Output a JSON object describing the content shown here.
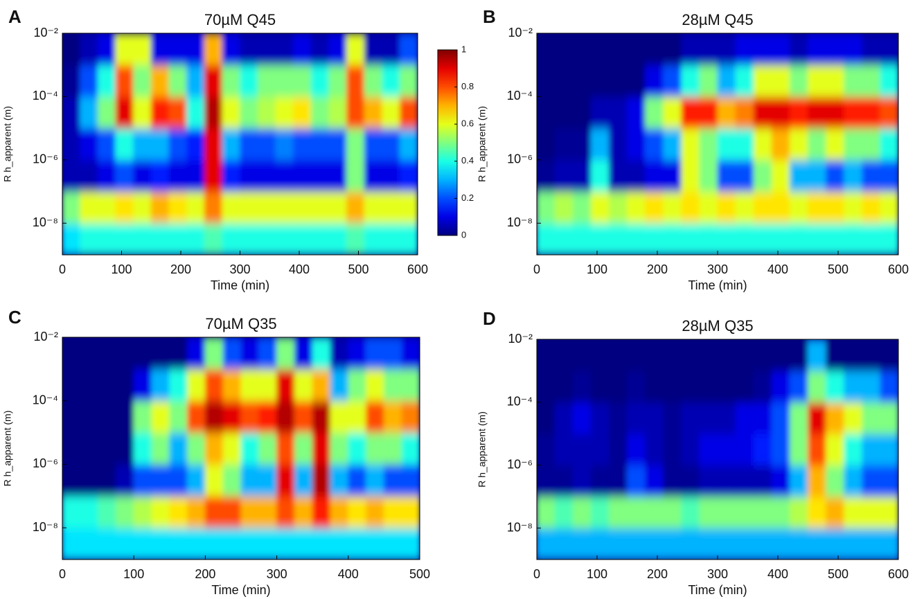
{
  "chart_data": [
    {
      "type": "heatmap",
      "panel_label": "A",
      "title": "70µM Q45",
      "x_label": "Time (min)",
      "y_label": "R h_apparent (m)",
      "colormap": "jet",
      "log_y": true,
      "xlim": [
        0,
        600
      ],
      "xticks": [
        0,
        100,
        200,
        300,
        400,
        500,
        600
      ],
      "ylim": [
        1e-09,
        0.01
      ],
      "yticks": [
        {
          "value": 1e-08,
          "label": "10⁻⁸"
        },
        {
          "value": 1e-06,
          "label": "10⁻⁶"
        },
        {
          "value": 0.0001,
          "label": "10⁻⁴"
        },
        {
          "value": 0.01,
          "label": "10⁻²"
        }
      ],
      "xbins": [
        0,
        30,
        60,
        90,
        120,
        150,
        180,
        210,
        240,
        270,
        300,
        330,
        360,
        390,
        420,
        450,
        480,
        510,
        540,
        570,
        600
      ],
      "ybins": [
        1e-09,
        1e-08,
        1e-07,
        1e-06,
        1e-05,
        0.0001,
        0.001,
        0.01
      ],
      "z": [
        [
          0.35,
          0.4,
          0.4,
          0.4,
          0.4,
          0.4,
          0.4,
          0.4,
          0.45,
          0.4,
          0.4,
          0.4,
          0.4,
          0.4,
          0.4,
          0.4,
          0.45,
          0.4,
          0.4,
          0.4
        ],
        [
          0.5,
          0.6,
          0.6,
          0.65,
          0.6,
          0.7,
          0.65,
          0.6,
          0.75,
          0.6,
          0.6,
          0.6,
          0.6,
          0.6,
          0.6,
          0.6,
          0.7,
          0.6,
          0.6,
          0.6
        ],
        [
          0.05,
          0.05,
          0.1,
          0.2,
          0.1,
          0.15,
          0.1,
          0.1,
          0.9,
          0.15,
          0.1,
          0.1,
          0.1,
          0.1,
          0.1,
          0.1,
          0.5,
          0.1,
          0.1,
          0.15
        ],
        [
          0.05,
          0.1,
          0.2,
          0.4,
          0.3,
          0.3,
          0.2,
          0.15,
          0.9,
          0.3,
          0.2,
          0.2,
          0.25,
          0.2,
          0.2,
          0.2,
          0.5,
          0.2,
          0.2,
          0.3
        ],
        [
          0.05,
          0.3,
          0.5,
          0.9,
          0.6,
          0.85,
          0.8,
          0.4,
          0.95,
          0.6,
          0.5,
          0.55,
          0.6,
          0.65,
          0.5,
          0.55,
          0.8,
          0.7,
          0.6,
          0.8
        ],
        [
          0.02,
          0.2,
          0.4,
          0.8,
          0.5,
          0.7,
          0.5,
          0.3,
          0.9,
          0.5,
          0.4,
          0.5,
          0.5,
          0.5,
          0.4,
          0.5,
          0.8,
          0.5,
          0.4,
          0.5
        ],
        [
          0,
          0.05,
          0.1,
          0.6,
          0.6,
          0.1,
          0.1,
          0.1,
          0.7,
          0.1,
          0.05,
          0.05,
          0.05,
          0.1,
          0.05,
          0.1,
          0.6,
          0.05,
          0.05,
          0.2
        ]
      ],
      "colorbar": {
        "lim": [
          0,
          1
        ],
        "ticks": [
          0,
          0.2,
          0.4,
          0.6,
          0.8,
          1
        ]
      }
    },
    {
      "type": "heatmap",
      "panel_label": "B",
      "title": "28µM Q45",
      "x_label": "Time (min)",
      "y_label": "R h_apparent (m)",
      "colormap": "jet",
      "log_y": true,
      "xlim": [
        0,
        600
      ],
      "xticks": [
        0,
        100,
        200,
        300,
        400,
        500,
        600
      ],
      "ylim": [
        1e-09,
        0.01
      ],
      "yticks": [
        {
          "value": 1e-08,
          "label": "10⁻⁸"
        },
        {
          "value": 1e-06,
          "label": "10⁻⁶"
        },
        {
          "value": 0.0001,
          "label": "10⁻⁴"
        },
        {
          "value": 0.01,
          "label": "10⁻²"
        }
      ],
      "xbins": [
        0,
        30,
        60,
        90,
        120,
        150,
        180,
        210,
        240,
        270,
        300,
        330,
        360,
        390,
        420,
        450,
        480,
        510,
        540,
        570,
        600
      ],
      "ybins": [
        1e-09,
        1e-08,
        1e-07,
        1e-06,
        1e-05,
        0.0001,
        0.001,
        0.01
      ],
      "z": [
        [
          0.4,
          0.4,
          0.4,
          0.4,
          0.4,
          0.4,
          0.4,
          0.4,
          0.4,
          0.4,
          0.4,
          0.4,
          0.4,
          0.4,
          0.4,
          0.4,
          0.4,
          0.4,
          0.4,
          0.4
        ],
        [
          0.5,
          0.55,
          0.5,
          0.6,
          0.55,
          0.6,
          0.65,
          0.6,
          0.65,
          0.6,
          0.65,
          0.6,
          0.65,
          0.65,
          0.6,
          0.65,
          0.65,
          0.6,
          0.65,
          0.6
        ],
        [
          0.02,
          0.05,
          0.05,
          0.4,
          0.05,
          0.05,
          0.1,
          0.1,
          0.6,
          0.5,
          0.2,
          0.2,
          0.5,
          0.6,
          0.3,
          0.3,
          0.2,
          0.3,
          0.2,
          0.2
        ],
        [
          0,
          0.02,
          0.02,
          0.3,
          0.05,
          0.1,
          0.2,
          0.3,
          0.6,
          0.5,
          0.4,
          0.4,
          0.6,
          0.7,
          0.6,
          0.5,
          0.6,
          0.5,
          0.5,
          0.4
        ],
        [
          0,
          0,
          0,
          0.05,
          0.05,
          0.1,
          0.5,
          0.6,
          0.85,
          0.85,
          0.7,
          0.75,
          0.9,
          0.9,
          0.85,
          0.9,
          0.9,
          0.85,
          0.85,
          0.8
        ],
        [
          0,
          0,
          0,
          0,
          0,
          0,
          0.1,
          0.2,
          0.4,
          0.5,
          0.3,
          0.4,
          0.6,
          0.6,
          0.5,
          0.6,
          0.6,
          0.5,
          0.5,
          0.4
        ],
        [
          0,
          0,
          0,
          0,
          0,
          0,
          0,
          0,
          0.05,
          0.05,
          0.05,
          0.1,
          0.1,
          0.1,
          0.05,
          0.1,
          0.1,
          0.1,
          0.05,
          0.05
        ]
      ]
    },
    {
      "type": "heatmap",
      "panel_label": "C",
      "title": "70µM Q35",
      "x_label": "Time (min)",
      "y_label": "R h_apparent (m)",
      "colormap": "jet",
      "log_y": true,
      "xlim": [
        0,
        500
      ],
      "xticks": [
        0,
        100,
        200,
        300,
        400,
        500
      ],
      "ylim": [
        1e-09,
        0.01
      ],
      "yticks": [
        {
          "value": 1e-08,
          "label": "10⁻⁸"
        },
        {
          "value": 1e-06,
          "label": "10⁻⁶"
        },
        {
          "value": 0.0001,
          "label": "10⁻⁴"
        },
        {
          "value": 0.01,
          "label": "10⁻²"
        }
      ],
      "xbins": [
        0,
        25,
        50,
        75,
        100,
        125,
        150,
        175,
        200,
        225,
        250,
        275,
        300,
        325,
        350,
        375,
        400,
        425,
        450,
        475,
        500
      ],
      "ybins": [
        1e-09,
        1e-08,
        1e-07,
        1e-06,
        1e-05,
        0.0001,
        0.001,
        0.01
      ],
      "z": [
        [
          0.35,
          0.35,
          0.35,
          0.35,
          0.35,
          0.35,
          0.35,
          0.35,
          0.35,
          0.35,
          0.35,
          0.35,
          0.35,
          0.35,
          0.35,
          0.35,
          0.35,
          0.35,
          0.35,
          0.35
        ],
        [
          0.4,
          0.4,
          0.45,
          0.5,
          0.55,
          0.6,
          0.65,
          0.7,
          0.8,
          0.8,
          0.7,
          0.7,
          0.8,
          0.7,
          0.85,
          0.7,
          0.65,
          0.7,
          0.65,
          0.65
        ],
        [
          0,
          0,
          0,
          0.05,
          0.2,
          0.2,
          0.2,
          0.3,
          0.6,
          0.5,
          0.3,
          0.3,
          0.9,
          0.3,
          0.95,
          0.3,
          0.2,
          0.3,
          0.2,
          0.2
        ],
        [
          0,
          0,
          0,
          0,
          0.4,
          0.5,
          0.3,
          0.5,
          0.7,
          0.6,
          0.4,
          0.5,
          0.8,
          0.5,
          0.9,
          0.5,
          0.4,
          0.5,
          0.5,
          0.4
        ],
        [
          0,
          0,
          0,
          0,
          0.5,
          0.6,
          0.5,
          0.8,
          0.95,
          0.9,
          0.8,
          0.85,
          0.95,
          0.8,
          0.95,
          0.6,
          0.6,
          0.8,
          0.7,
          0.75
        ],
        [
          0,
          0,
          0,
          0,
          0.1,
          0.3,
          0.4,
          0.6,
          0.8,
          0.7,
          0.6,
          0.6,
          0.9,
          0.6,
          0.7,
          0.3,
          0.5,
          0.6,
          0.5,
          0.5
        ],
        [
          0,
          0,
          0,
          0,
          0,
          0,
          0,
          0.1,
          0.5,
          0.2,
          0.1,
          0.2,
          0.5,
          0.1,
          0.4,
          0.05,
          0.1,
          0.2,
          0.2,
          0.1
        ]
      ]
    },
    {
      "type": "heatmap",
      "panel_label": "D",
      "title": "28µM Q35",
      "x_label": "Time (min)",
      "y_label": "R h_apparent (m)",
      "colormap": "jet",
      "log_y": true,
      "xlim": [
        0,
        600
      ],
      "xticks": [
        0,
        100,
        200,
        300,
        400,
        500,
        600
      ],
      "ylim": [
        1e-09,
        0.01
      ],
      "yticks": [
        {
          "value": 1e-08,
          "label": "10⁻⁸"
        },
        {
          "value": 1e-06,
          "label": "10⁻⁶"
        },
        {
          "value": 0.0001,
          "label": "10⁻⁴"
        },
        {
          "value": 0.01,
          "label": "10⁻²"
        }
      ],
      "xbins": [
        0,
        30,
        60,
        90,
        120,
        150,
        180,
        210,
        240,
        270,
        300,
        330,
        360,
        390,
        420,
        450,
        480,
        510,
        540,
        570,
        600
      ],
      "ybins": [
        1e-09,
        1e-08,
        1e-07,
        1e-06,
        1e-05,
        0.0001,
        0.001,
        0.01
      ],
      "z": [
        [
          0.3,
          0.3,
          0.3,
          0.3,
          0.3,
          0.3,
          0.3,
          0.3,
          0.3,
          0.3,
          0.3,
          0.3,
          0.3,
          0.3,
          0.3,
          0.3,
          0.3,
          0.3,
          0.3,
          0.3
        ],
        [
          0.5,
          0.45,
          0.5,
          0.45,
          0.5,
          0.5,
          0.5,
          0.5,
          0.45,
          0.5,
          0.5,
          0.5,
          0.5,
          0.5,
          0.55,
          0.65,
          0.7,
          0.6,
          0.6,
          0.6
        ],
        [
          0.02,
          0.02,
          0.05,
          0.02,
          0.02,
          0.2,
          0.1,
          0.02,
          0.02,
          0.05,
          0.05,
          0.05,
          0.05,
          0.1,
          0.3,
          0.7,
          0.5,
          0.3,
          0.2,
          0.2
        ],
        [
          0.02,
          0.05,
          0.05,
          0.05,
          0.02,
          0.1,
          0.05,
          0.02,
          0.05,
          0.1,
          0.1,
          0.1,
          0.15,
          0.2,
          0.5,
          0.8,
          0.6,
          0.4,
          0.3,
          0.3
        ],
        [
          0,
          0.05,
          0.1,
          0.05,
          0.02,
          0.05,
          0.05,
          0.02,
          0.05,
          0.05,
          0.05,
          0.1,
          0.1,
          0.2,
          0.5,
          0.9,
          0.7,
          0.6,
          0.5,
          0.5
        ],
        [
          0,
          0,
          0.02,
          0,
          0,
          0.02,
          0,
          0,
          0,
          0,
          0,
          0,
          0.02,
          0.1,
          0.2,
          0.5,
          0.4,
          0.3,
          0.3,
          0.2
        ],
        [
          0,
          0,
          0,
          0,
          0,
          0,
          0,
          0,
          0,
          0,
          0,
          0,
          0,
          0,
          0,
          0.3,
          0,
          0,
          0,
          0
        ]
      ]
    }
  ]
}
